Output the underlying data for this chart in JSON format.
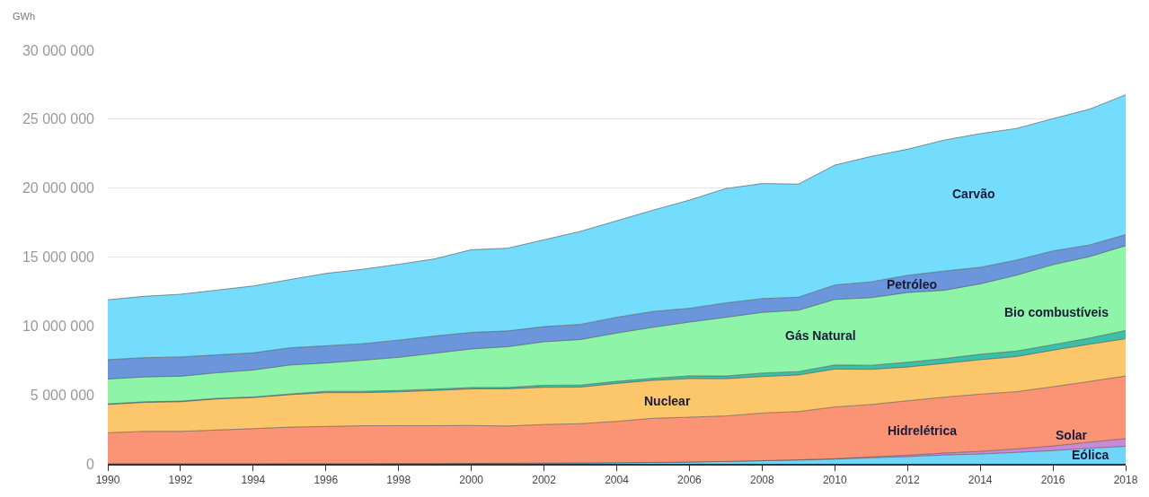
{
  "chart_data": {
    "type": "area",
    "stacked": true,
    "ylabel": "GWh",
    "x": [
      1990,
      1991,
      1992,
      1993,
      1994,
      1995,
      1996,
      1997,
      1998,
      1999,
      2000,
      2001,
      2002,
      2003,
      2004,
      2005,
      2006,
      2007,
      2008,
      2009,
      2010,
      2011,
      2012,
      2013,
      2014,
      2015,
      2016,
      2017,
      2018
    ],
    "series": [
      {
        "name": "Eólica",
        "color": "#6fd6f8",
        "values": [
          0,
          0,
          0,
          0,
          0,
          10000,
          10000,
          10000,
          20000,
          20000,
          30000,
          40000,
          50000,
          60000,
          80000,
          100000,
          130000,
          170000,
          220000,
          270000,
          340000,
          440000,
          520000,
          640000,
          710000,
          830000,
          960000,
          1130000,
          1270000
        ]
      },
      {
        "name": "Solar",
        "color": "#c88ad6",
        "values": [
          0,
          0,
          0,
          0,
          0,
          0,
          0,
          0,
          0,
          0,
          0,
          0,
          0,
          0,
          0,
          0,
          0,
          0,
          10000,
          20000,
          30000,
          60000,
          100000,
          140000,
          190000,
          250000,
          330000,
          440000,
          550000
        ]
      },
      {
        "name": "Hidrelétrica",
        "color": "#fb9475",
        "values": [
          2250000,
          2350000,
          2350000,
          2450000,
          2550000,
          2650000,
          2700000,
          2750000,
          2750000,
          2750000,
          2750000,
          2700000,
          2800000,
          2850000,
          3000000,
          3200000,
          3250000,
          3300000,
          3450000,
          3500000,
          3750000,
          3800000,
          3950000,
          4050000,
          4150000,
          4150000,
          4300000,
          4400000,
          4550000
        ]
      },
      {
        "name": "Nuclear",
        "color": "#fcc76b",
        "values": [
          2050000,
          2100000,
          2150000,
          2250000,
          2250000,
          2350000,
          2450000,
          2400000,
          2450000,
          2550000,
          2650000,
          2700000,
          2700000,
          2650000,
          2750000,
          2750000,
          2800000,
          2700000,
          2650000,
          2650000,
          2750000,
          2550000,
          2450000,
          2450000,
          2500000,
          2550000,
          2650000,
          2700000,
          2700000
        ]
      },
      {
        "name": "Bio combustíveis",
        "color": "#3cbfa8",
        "values": [
          50000,
          50000,
          50000,
          50000,
          50000,
          50000,
          100000,
          100000,
          100000,
          100000,
          100000,
          100000,
          150000,
          150000,
          150000,
          150000,
          200000,
          200000,
          250000,
          250000,
          300000,
          300000,
          350000,
          350000,
          400000,
          400000,
          400000,
          450000,
          600000
        ]
      },
      {
        "name": "Gás Natural",
        "color": "#8ef5a8",
        "values": [
          1800000,
          1800000,
          1800000,
          1850000,
          1950000,
          2100000,
          2050000,
          2250000,
          2400000,
          2600000,
          2800000,
          2950000,
          3150000,
          3300000,
          3500000,
          3700000,
          3900000,
          4250000,
          4400000,
          4450000,
          4750000,
          4900000,
          5050000,
          4950000,
          5100000,
          5500000,
          5800000,
          5900000,
          6150000
        ]
      },
      {
        "name": "Petróleo",
        "color": "#6b96dc",
        "values": [
          1400000,
          1400000,
          1400000,
          1300000,
          1250000,
          1250000,
          1250000,
          1200000,
          1250000,
          1250000,
          1200000,
          1150000,
          1100000,
          1100000,
          1150000,
          1150000,
          1000000,
          1050000,
          1000000,
          950000,
          1050000,
          1150000,
          1250000,
          1400000,
          1200000,
          1100000,
          1000000,
          850000,
          800000
        ]
      },
      {
        "name": "Carvão",
        "color": "#74dcfd",
        "values": [
          4350000,
          4450000,
          4550000,
          4700000,
          4850000,
          4950000,
          5250000,
          5400000,
          5500000,
          5600000,
          6000000,
          6000000,
          6300000,
          6750000,
          7000000,
          7350000,
          7850000,
          8300000,
          8350000,
          8200000,
          8700000,
          9100000,
          9150000,
          9500000,
          9700000,
          9550000,
          9600000,
          9850000,
          10150000
        ]
      }
    ],
    "xlim": [
      1990,
      2018
    ],
    "xticks": [
      1990,
      1992,
      1994,
      1996,
      1998,
      2000,
      2002,
      2004,
      2006,
      2008,
      2010,
      2012,
      2014,
      2016,
      2018
    ],
    "ylim": [
      0,
      30000000
    ],
    "yticks": [
      {
        "value": 0,
        "label": "0"
      },
      {
        "value": 5000000,
        "label": "5 000 000"
      },
      {
        "value": 10000000,
        "label": "10 000 000"
      },
      {
        "value": 15000000,
        "label": "15 000 000"
      },
      {
        "value": 20000000,
        "label": "20 000 000"
      },
      {
        "value": 25000000,
        "label": "25 000 000"
      },
      {
        "value": 30000000,
        "label": "30 000 000"
      }
    ],
    "grid": "y",
    "legend": false
  }
}
